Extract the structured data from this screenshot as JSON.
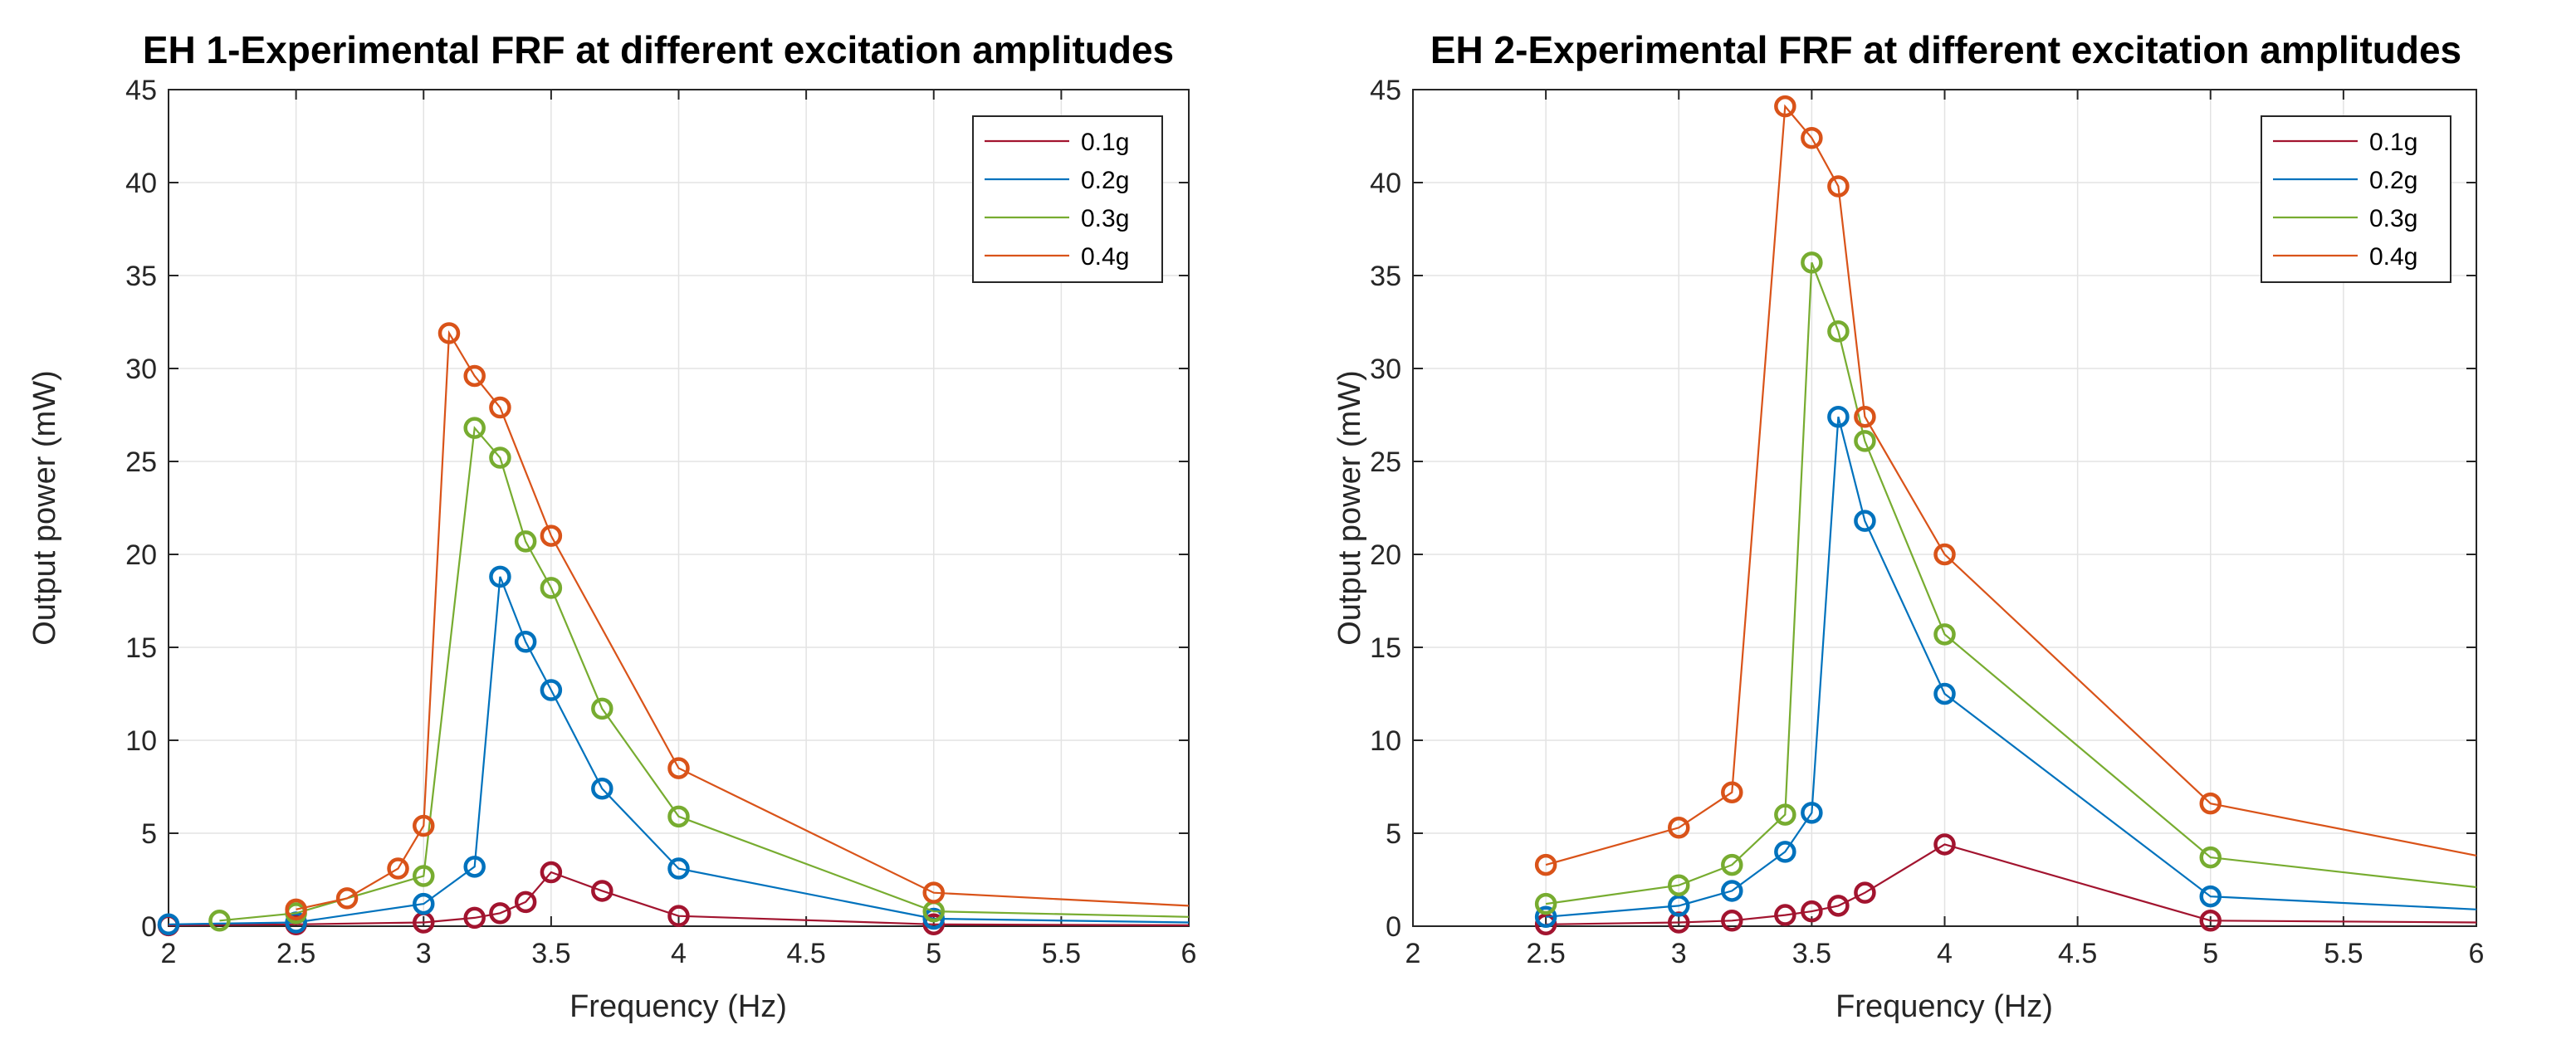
{
  "chart_data": [
    {
      "type": "line",
      "title": "EH 1-Experimental FRF at different excitation amplitudes",
      "xlabel": "Frequency (Hz)",
      "ylabel": "Output power (mW)",
      "xlim": [
        2,
        6
      ],
      "ylim": [
        0,
        45
      ],
      "xticks": [
        "2",
        "2.5",
        "3",
        "3.5",
        "4",
        "4.5",
        "5",
        "5.5",
        "6"
      ],
      "yticks": [
        "0",
        "5",
        "10",
        "15",
        "20",
        "25",
        "30",
        "35",
        "40",
        "45"
      ],
      "grid": true,
      "legend_position": "top-right",
      "series": [
        {
          "name": "0.1g",
          "color": "#a2142f",
          "x": [
            2,
            2.5,
            3,
            3.2,
            3.3,
            3.4,
            3.5,
            3.7,
            4,
            5,
            6
          ],
          "y": [
            0.05,
            0.1,
            0.2,
            0.45,
            0.7,
            1.3,
            2.9,
            1.9,
            0.55,
            0.1,
            0.05
          ],
          "markers": [
            true,
            true,
            true,
            true,
            true,
            true,
            true,
            true,
            true,
            true,
            false
          ]
        },
        {
          "name": "0.2g",
          "color": "#0072bd",
          "x": [
            2,
            2.5,
            3,
            3.2,
            3.3,
            3.4,
            3.5,
            3.7,
            4,
            5,
            6
          ],
          "y": [
            0.1,
            0.2,
            1.2,
            3.2,
            18.8,
            15.3,
            12.7,
            7.4,
            3.1,
            0.4,
            0.2
          ],
          "markers": [
            true,
            true,
            true,
            true,
            true,
            true,
            true,
            true,
            true,
            true,
            false
          ]
        },
        {
          "name": "0.3g",
          "color": "#77ac30",
          "x": [
            2.2,
            2.5,
            3,
            3.2,
            3.3,
            3.4,
            3.5,
            3.7,
            4,
            5,
            6
          ],
          "y": [
            0.3,
            0.7,
            2.7,
            26.8,
            25.2,
            20.7,
            18.2,
            11.7,
            5.9,
            0.8,
            0.5
          ],
          "markers": [
            true,
            true,
            true,
            true,
            true,
            true,
            true,
            true,
            true,
            true,
            false
          ]
        },
        {
          "name": "0.4g",
          "color": "#d95319",
          "x": [
            2.5,
            2.7,
            2.9,
            3,
            3.1,
            3.2,
            3.3,
            3.5,
            4,
            5,
            6
          ],
          "y": [
            0.9,
            1.5,
            3.1,
            5.4,
            31.9,
            29.6,
            27.9,
            21.0,
            8.5,
            1.8,
            1.1
          ],
          "markers": [
            true,
            true,
            true,
            true,
            true,
            true,
            true,
            true,
            true,
            true,
            false
          ]
        }
      ]
    },
    {
      "type": "line",
      "title": "EH 2-Experimental FRF at different excitation amplitudes",
      "xlabel": "Frequency (Hz)",
      "ylabel": "Output power (mW)",
      "xlim": [
        2,
        6
      ],
      "ylim": [
        0,
        45
      ],
      "xticks": [
        "2",
        "2.5",
        "3",
        "3.5",
        "4",
        "4.5",
        "5",
        "5.5",
        "6"
      ],
      "yticks": [
        "0",
        "5",
        "10",
        "15",
        "20",
        "25",
        "30",
        "35",
        "40",
        "45"
      ],
      "grid": true,
      "legend_position": "top-right",
      "series": [
        {
          "name": "0.1g",
          "color": "#a2142f",
          "x": [
            2.5,
            3,
            3.2,
            3.4,
            3.5,
            3.6,
            3.7,
            4,
            5,
            6
          ],
          "y": [
            0.1,
            0.2,
            0.3,
            0.6,
            0.8,
            1.1,
            1.8,
            4.4,
            0.3,
            0.2
          ],
          "markers": [
            true,
            true,
            true,
            true,
            true,
            true,
            true,
            true,
            true,
            false
          ]
        },
        {
          "name": "0.2g",
          "color": "#0072bd",
          "x": [
            2.5,
            3,
            3.2,
            3.4,
            3.5,
            3.6,
            3.7,
            4,
            5,
            6
          ],
          "y": [
            0.5,
            1.1,
            1.9,
            4.0,
            6.1,
            27.4,
            21.8,
            12.5,
            1.6,
            0.9
          ],
          "markers": [
            true,
            true,
            true,
            true,
            true,
            true,
            true,
            true,
            true,
            false
          ]
        },
        {
          "name": "0.3g",
          "color": "#77ac30",
          "x": [
            2.5,
            3,
            3.2,
            3.4,
            3.5,
            3.6,
            3.7,
            4,
            5,
            6
          ],
          "y": [
            1.2,
            2.2,
            3.3,
            6.0,
            35.7,
            32.0,
            26.1,
            15.7,
            3.7,
            2.1
          ],
          "markers": [
            true,
            true,
            true,
            true,
            true,
            true,
            true,
            true,
            true,
            false
          ]
        },
        {
          "name": "0.4g",
          "color": "#d95319",
          "x": [
            2.5,
            3,
            3.2,
            3.4,
            3.5,
            3.6,
            3.7,
            4,
            5,
            6
          ],
          "y": [
            3.3,
            5.3,
            7.2,
            44.1,
            42.4,
            39.8,
            27.4,
            20.0,
            6.6,
            3.8
          ],
          "markers": [
            true,
            true,
            true,
            true,
            true,
            true,
            true,
            true,
            true,
            false
          ]
        }
      ]
    }
  ]
}
